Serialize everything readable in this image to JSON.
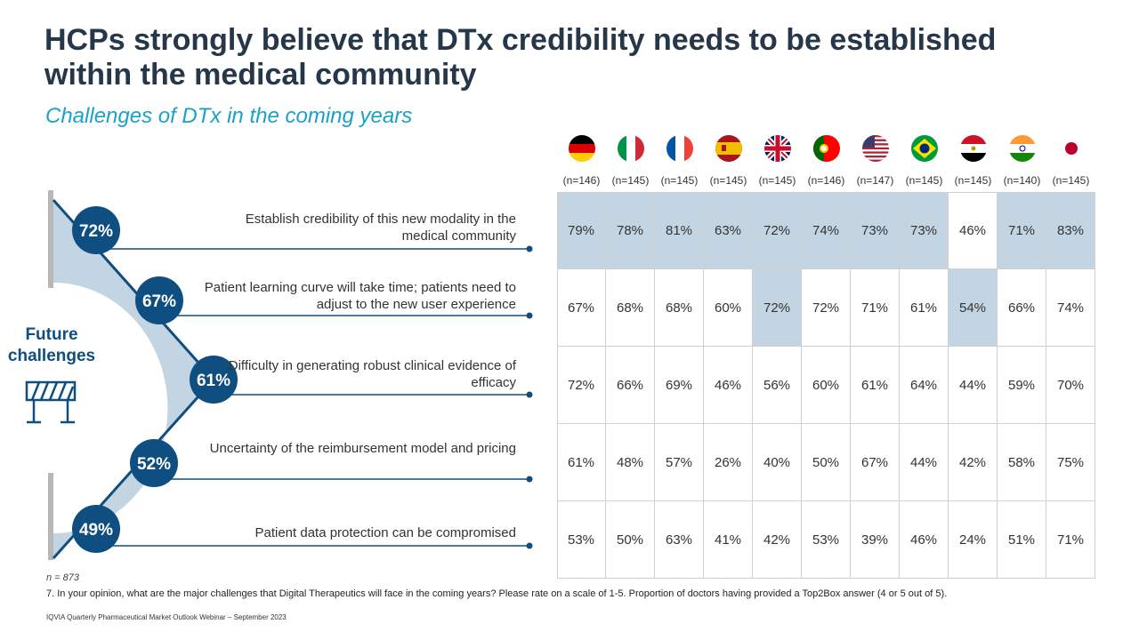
{
  "title": "HCPs strongly believe that DTx credibility needs to be established within the medical community",
  "subtitle": "Challenges of DTx in the coming years",
  "future_label": "Future challenges",
  "chart_data": {
    "type": "table",
    "challenges": [
      {
        "label": "Establish credibility of this new modality in the medical community",
        "overall": "72%",
        "value": 72
      },
      {
        "label": "Patient learning curve will take time; patients need to adjust to the new user experience",
        "overall": "67%",
        "value": 67
      },
      {
        "label": "Difficulty in generating robust clinical evidence of efficacy",
        "overall": "61%",
        "value": 61
      },
      {
        "label": "Uncertainty of the reimbursement model and pricing",
        "overall": "52%",
        "value": 52
      },
      {
        "label": "Patient data protection can be compromised",
        "overall": "49%",
        "value": 49
      }
    ],
    "countries": [
      {
        "flag": "germany-flag",
        "n": "(n=146)"
      },
      {
        "flag": "italy-flag",
        "n": "(n=145)"
      },
      {
        "flag": "france-flag",
        "n": "(n=145)"
      },
      {
        "flag": "spain-flag",
        "n": "(n=145)"
      },
      {
        "flag": "uk-flag",
        "n": "(n=145)"
      },
      {
        "flag": "portugal-flag",
        "n": "(n=146)"
      },
      {
        "flag": "usa-flag",
        "n": "(n=147)"
      },
      {
        "flag": "brazil-flag",
        "n": "(n=145)"
      },
      {
        "flag": "egypt-flag",
        "n": "(n=145)"
      },
      {
        "flag": "india-flag",
        "n": "(n=140)"
      },
      {
        "flag": "japan-flag",
        "n": "(n=145)"
      }
    ],
    "rows": [
      {
        "values": [
          "79%",
          "78%",
          "81%",
          "63%",
          "72%",
          "74%",
          "73%",
          "73%",
          "46%",
          "71%",
          "83%"
        ],
        "highlight": [
          1,
          1,
          1,
          1,
          1,
          1,
          1,
          1,
          0,
          1,
          1
        ]
      },
      {
        "values": [
          "67%",
          "68%",
          "68%",
          "60%",
          "72%",
          "72%",
          "71%",
          "61%",
          "54%",
          "66%",
          "74%"
        ],
        "highlight": [
          0,
          0,
          0,
          0,
          1,
          0,
          0,
          0,
          1,
          0,
          0
        ]
      },
      {
        "values": [
          "72%",
          "66%",
          "69%",
          "46%",
          "56%",
          "60%",
          "61%",
          "64%",
          "44%",
          "59%",
          "70%"
        ],
        "highlight": [
          0,
          0,
          0,
          0,
          0,
          0,
          0,
          0,
          0,
          0,
          0
        ]
      },
      {
        "values": [
          "61%",
          "48%",
          "57%",
          "26%",
          "40%",
          "50%",
          "67%",
          "44%",
          "42%",
          "58%",
          "75%"
        ],
        "highlight": [
          0,
          0,
          0,
          0,
          0,
          0,
          0,
          0,
          0,
          0,
          0
        ]
      },
      {
        "values": [
          "53%",
          "50%",
          "63%",
          "41%",
          "42%",
          "53%",
          "39%",
          "46%",
          "24%",
          "51%",
          "71%"
        ],
        "highlight": [
          0,
          0,
          0,
          0,
          0,
          0,
          0,
          0,
          0,
          0,
          0
        ]
      }
    ]
  },
  "n_note": "n = 873",
  "footnote": "7. In your opinion, what are the major challenges that Digital Therapeutics will face in the coming years? Please rate on a scale of 1-5. Proportion of doctors having provided a Top2Box answer (4 or 5 out of 5).",
  "source": "IQVIA Quarterly Pharmaceutical Market Outlook Webinar – September 2023",
  "colors": {
    "title": "#26374a",
    "subtitle": "#1ba1c9",
    "navy": "#0f4e80",
    "light_blue": "#c3d5e2",
    "gray": "#b8b8b8"
  }
}
